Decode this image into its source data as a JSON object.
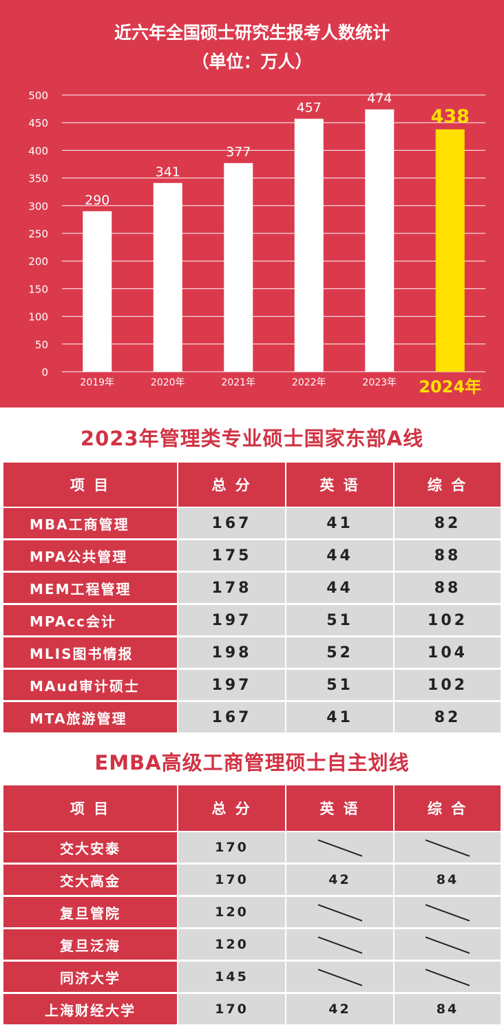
{
  "chart_title": "近六年全国硕士研究生报考人数统计",
  "chart_subtitle": "（单位：万人）",
  "chart_data": {
    "type": "bar",
    "title": "近六年全国硕士研究生报考人数统计",
    "subtitle": "（单位：万人）",
    "categories": [
      "2019年",
      "2020年",
      "2021年",
      "2022年",
      "2023年",
      "2024年"
    ],
    "values": [
      290,
      341,
      377,
      457,
      474,
      438
    ],
    "ylim": [
      0,
      500
    ],
    "yticks": [
      0,
      50,
      100,
      150,
      200,
      250,
      300,
      350,
      400,
      450,
      500
    ],
    "grid": true,
    "highlight_index": 5,
    "colors": {
      "bar": "#ffffff",
      "highlight": "#ffe000",
      "background": "#db3a4d"
    }
  },
  "table1": {
    "title": "2023年管理类专业硕士国家东部A线",
    "headers": [
      "项 目",
      "总 分",
      "英 语",
      "综 合"
    ],
    "rows": [
      [
        "MBA工商管理",
        "167",
        "41",
        "82"
      ],
      [
        "MPA公共管理",
        "175",
        "44",
        "88"
      ],
      [
        "MEM工程管理",
        "178",
        "44",
        "88"
      ],
      [
        "MPAcc会计",
        "197",
        "51",
        "102"
      ],
      [
        "MLIS图书情报",
        "198",
        "52",
        "104"
      ],
      [
        "MAud审计硕士",
        "197",
        "51",
        "102"
      ],
      [
        "MTA旅游管理",
        "167",
        "41",
        "82"
      ]
    ]
  },
  "table2": {
    "title": "EMBA高级工商管理硕士自主划线",
    "headers": [
      "项 目",
      "总 分",
      "英 语",
      "综 合"
    ],
    "rows": [
      [
        "交大安泰",
        "170",
        "",
        ""
      ],
      [
        "交大高金",
        "170",
        "42",
        "84"
      ],
      [
        "复旦管院",
        "120",
        "",
        ""
      ],
      [
        "复旦泛海",
        "120",
        "",
        ""
      ],
      [
        "同济大学",
        "145",
        "",
        ""
      ],
      [
        "上海财经大学",
        "170",
        "42",
        "84"
      ]
    ]
  }
}
